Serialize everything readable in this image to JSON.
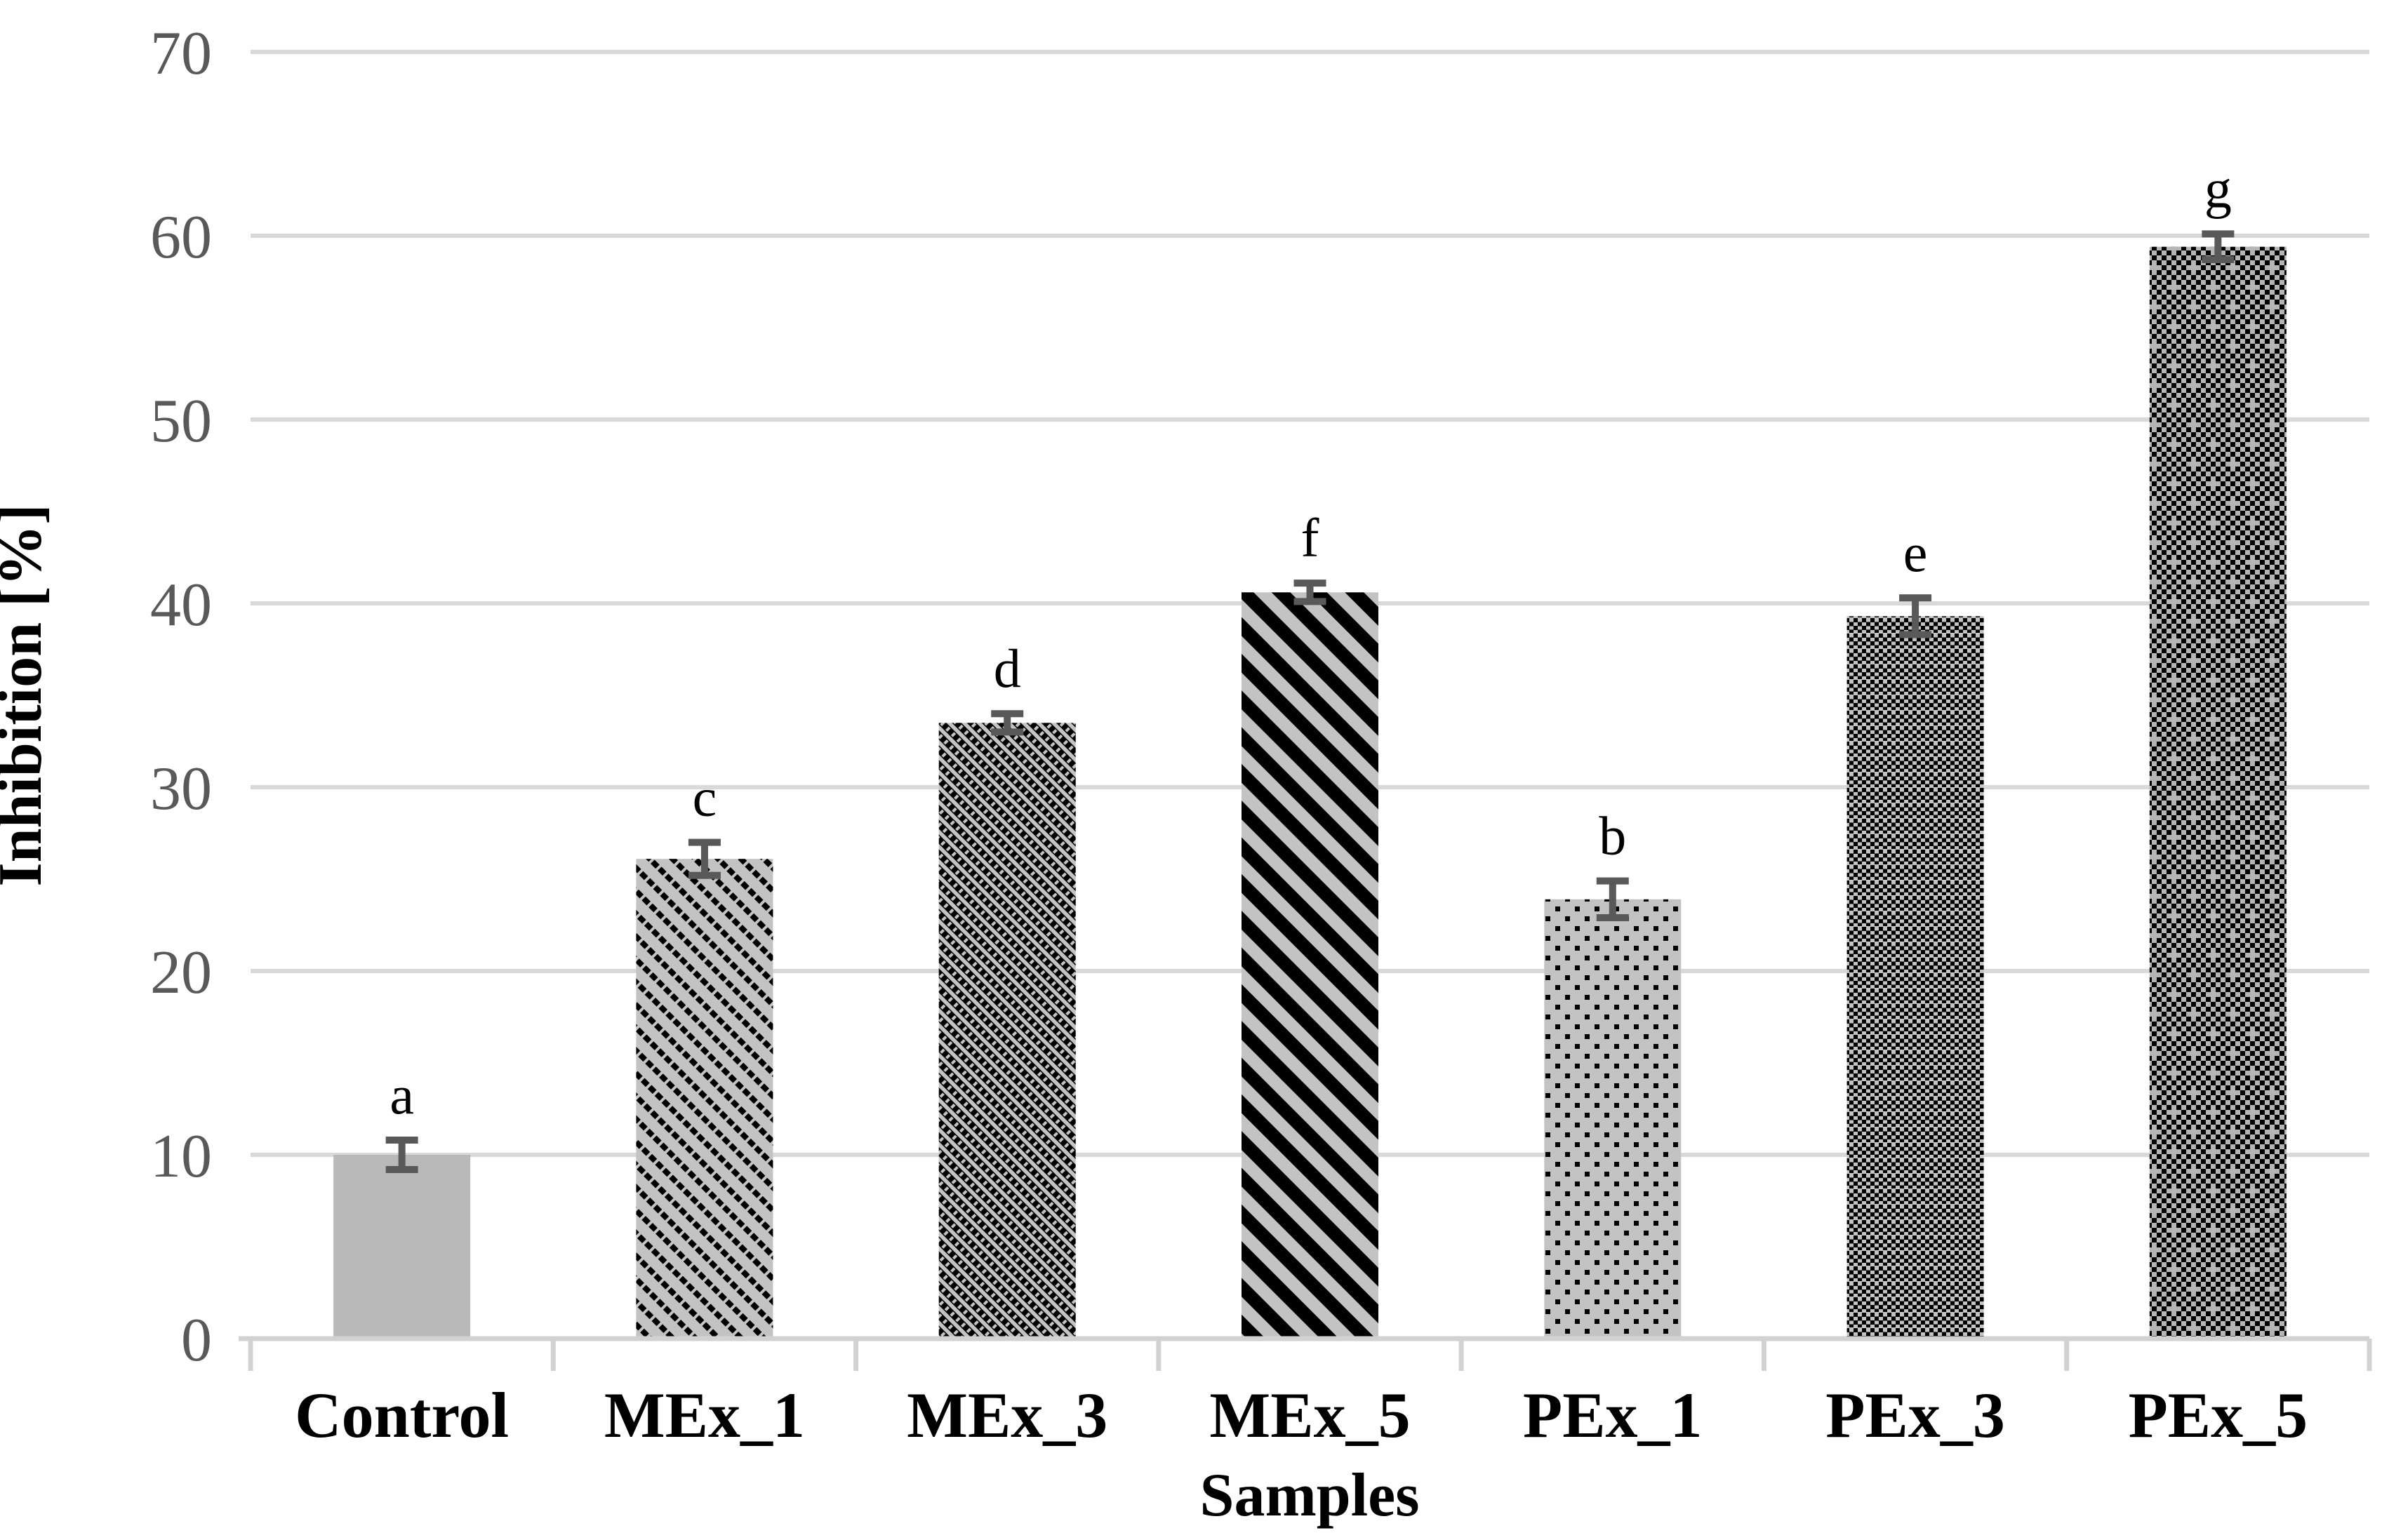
{
  "chart_data": {
    "type": "bar",
    "title": "",
    "xlabel": "Samples",
    "ylabel": "Inhibition [%]",
    "ylim": [
      0,
      70
    ],
    "yticks": [
      0,
      10,
      20,
      30,
      40,
      50,
      60,
      70
    ],
    "grid": "horizontal-gridlines-on",
    "legend": "none",
    "categories": [
      "Control",
      "MEx_1",
      "MEx_3",
      "MEx_5",
      "PEx_1",
      "PEx_3",
      "PEx_5"
    ],
    "series": [
      {
        "name": "Inhibition [%]",
        "values": [
          10.0,
          26.1,
          33.5,
          40.6,
          23.9,
          39.3,
          59.4
        ],
        "error_bars": [
          0.8,
          0.9,
          0.5,
          0.5,
          1.0,
          1.0,
          0.7
        ],
        "significance_letters": [
          "a",
          "c",
          "d",
          "f",
          "b",
          "e",
          "g"
        ],
        "bar_patterns": [
          "solid",
          "diagonal-light",
          "diagonal-dark",
          "diagonal-wide",
          "dots-sparse",
          "dots-dense",
          "trellis"
        ]
      }
    ],
    "colors": {
      "bar_solid_gray": "#b9b9b9",
      "pattern_background_gray": "#c3c3c3",
      "trellis_background_gray": "#b5b5b5",
      "pattern_foreground": "#000000",
      "gridline": "#d9d9d9",
      "axis_line": "#d2d2d2",
      "error_bar": "#595959",
      "tick_label_text": "#595959",
      "label_text": "#000000",
      "plot_background": "#ffffff"
    }
  }
}
